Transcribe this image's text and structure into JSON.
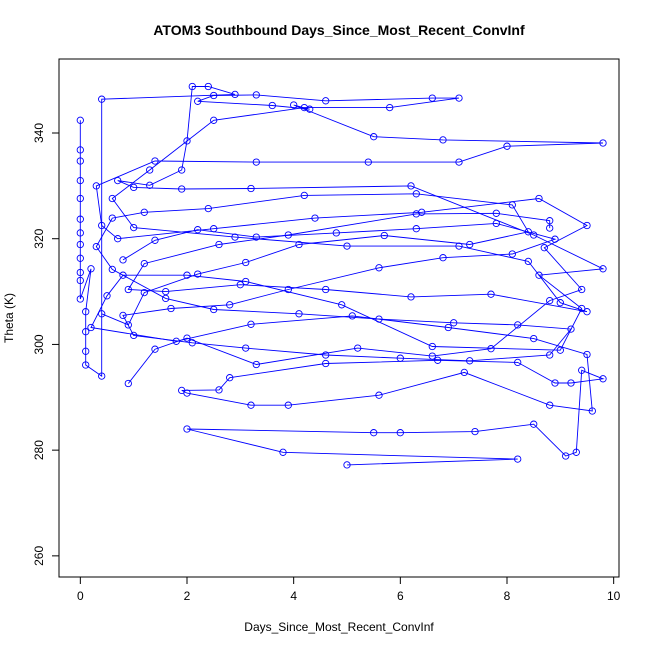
{
  "chart_data": {
    "type": "line",
    "title": "ATOM3 Southbound Days_Since_Most_Recent_ConvInf",
    "xlabel": "Days_Since_Most_Recent_ConvInf",
    "ylabel": "Theta (K)",
    "xlim": [
      -0.4,
      10.1
    ],
    "ylim": [
      256,
      354
    ],
    "xticks": [
      0,
      2,
      4,
      6,
      8,
      10
    ],
    "yticks": [
      260,
      280,
      300,
      320,
      340
    ],
    "series_color": "#0000ff",
    "markers": "open-circle",
    "grid": false,
    "legend": "none",
    "series": [
      {
        "values": [
          [
            0.0,
            342.4
          ],
          [
            0.0,
            336.8
          ],
          [
            0.0,
            334.7
          ],
          [
            0.0,
            331.0
          ],
          [
            0.0,
            327.6
          ],
          [
            0.0,
            323.7
          ],
          [
            0.0,
            321.1
          ],
          [
            0.0,
            318.9
          ],
          [
            0.0,
            316.3
          ],
          [
            0.0,
            313.6
          ],
          [
            0.0,
            312.1
          ],
          [
            0.0,
            308.6
          ],
          [
            0.2,
            314.3
          ],
          [
            0.1,
            306.2
          ],
          [
            0.1,
            302.4
          ],
          [
            0.1,
            298.7
          ],
          [
            0.1,
            296.1
          ],
          [
            0.4,
            294.0
          ],
          [
            0.4,
            346.4
          ],
          [
            2.9,
            347.3
          ],
          [
            2.4,
            348.8
          ],
          [
            2.1,
            348.8
          ],
          [
            2.0,
            338.5
          ],
          [
            1.9,
            333.0
          ],
          [
            1.3,
            330.1
          ],
          [
            0.7,
            331.0
          ],
          [
            1.0,
            329.7
          ],
          [
            1.9,
            329.4
          ],
          [
            3.2,
            329.5
          ],
          [
            6.2,
            330.0
          ],
          [
            8.5,
            320.7
          ],
          [
            9.8,
            314.3
          ],
          [
            8.6,
            313.1
          ],
          [
            9.4,
            306.8
          ],
          [
            9.0,
            298.9
          ],
          [
            6.6,
            299.6
          ],
          [
            4.9,
            307.5
          ],
          [
            3.1,
            311.9
          ],
          [
            2.0,
            313.1
          ],
          [
            0.8,
            313.1
          ],
          [
            0.5,
            309.2
          ],
          [
            0.2,
            303.2
          ],
          [
            1.8,
            300.6
          ],
          [
            3.2,
            303.8
          ],
          [
            5.1,
            305.4
          ],
          [
            6.9,
            303.2
          ],
          [
            8.5,
            301.1
          ],
          [
            9.5,
            298.1
          ],
          [
            9.6,
            287.4
          ],
          [
            8.8,
            288.5
          ],
          [
            7.2,
            294.7
          ],
          [
            5.6,
            290.4
          ],
          [
            3.9,
            288.5
          ],
          [
            3.2,
            288.5
          ],
          [
            2.0,
            290.8
          ],
          [
            1.9,
            291.3
          ],
          [
            2.6,
            291.4
          ],
          [
            2.8,
            293.7
          ],
          [
            4.6,
            296.4
          ],
          [
            6.7,
            297.0
          ],
          [
            8.2,
            296.6
          ],
          [
            8.9,
            292.7
          ],
          [
            9.2,
            292.7
          ],
          [
            9.8,
            293.5
          ],
          [
            9.4,
            295.1
          ],
          [
            9.3,
            279.6
          ],
          [
            9.1,
            278.9
          ],
          [
            8.5,
            284.9
          ],
          [
            7.4,
            283.5
          ],
          [
            6.0,
            283.3
          ],
          [
            5.5,
            283.3
          ],
          [
            2.0,
            284.0
          ],
          [
            3.8,
            279.6
          ],
          [
            8.2,
            278.3
          ],
          [
            5.0,
            277.2
          ]
        ]
      },
      {
        "values": [
          [
            0.9,
            292.6
          ],
          [
            1.4,
            299.1
          ],
          [
            2.0,
            301.2
          ],
          [
            3.3,
            296.2
          ],
          [
            5.2,
            299.3
          ],
          [
            6.6,
            297.8
          ],
          [
            7.7,
            299.2
          ],
          [
            8.8,
            308.3
          ],
          [
            9.4,
            310.4
          ],
          [
            8.7,
            318.3
          ],
          [
            9.5,
            322.5
          ],
          [
            8.6,
            327.6
          ],
          [
            6.4,
            325.0
          ],
          [
            4.4,
            323.9
          ],
          [
            2.5,
            321.9
          ],
          [
            0.7,
            320.0
          ],
          [
            0.4,
            322.5
          ],
          [
            0.3,
            330.0
          ],
          [
            1.4,
            334.7
          ],
          [
            3.3,
            334.5
          ],
          [
            5.4,
            334.5
          ],
          [
            7.1,
            334.5
          ],
          [
            8.0,
            337.5
          ],
          [
            9.8,
            338.1
          ],
          [
            6.8,
            338.7
          ],
          [
            5.5,
            339.3
          ],
          [
            4.0,
            345.3
          ],
          [
            4.3,
            344.5
          ],
          [
            3.6,
            345.2
          ],
          [
            2.2,
            346.0
          ],
          [
            2.5,
            347.1
          ],
          [
            3.3,
            347.2
          ],
          [
            4.6,
            346.1
          ],
          [
            6.6,
            346.6
          ],
          [
            7.1,
            346.6
          ],
          [
            5.8,
            344.8
          ],
          [
            4.2,
            344.8
          ],
          [
            2.5,
            342.4
          ],
          [
            1.3,
            333.0
          ],
          [
            0.6,
            327.6
          ],
          [
            1.0,
            322.1
          ],
          [
            2.9,
            320.3
          ],
          [
            5.0,
            318.6
          ],
          [
            7.1,
            318.6
          ],
          [
            8.4,
            315.7
          ],
          [
            9.0,
            307.9
          ],
          [
            9.5,
            306.2
          ],
          [
            7.7,
            309.5
          ],
          [
            6.2,
            309.0
          ],
          [
            4.6,
            310.4
          ],
          [
            3.0,
            311.3
          ],
          [
            1.6,
            310.0
          ],
          [
            0.9,
            310.4
          ],
          [
            1.2,
            315.3
          ],
          [
            2.6,
            318.9
          ],
          [
            3.9,
            320.7
          ],
          [
            6.3,
            324.7
          ],
          [
            7.8,
            324.8
          ],
          [
            8.8,
            323.4
          ],
          [
            8.8,
            322.0
          ]
        ]
      },
      {
        "values": [
          [
            0.4,
            305.8
          ],
          [
            0.9,
            303.7
          ],
          [
            1.2,
            309.8
          ],
          [
            2.2,
            313.3
          ],
          [
            3.1,
            315.5
          ],
          [
            4.1,
            318.9
          ],
          [
            5.7,
            320.6
          ],
          [
            7.3,
            318.9
          ],
          [
            8.4,
            321.3
          ],
          [
            8.1,
            326.4
          ],
          [
            6.3,
            328.5
          ],
          [
            4.2,
            328.2
          ],
          [
            2.4,
            325.7
          ],
          [
            1.2,
            325.0
          ],
          [
            0.6,
            323.9
          ],
          [
            0.3,
            318.5
          ],
          [
            0.6,
            314.2
          ],
          [
            1.6,
            308.7
          ],
          [
            2.5,
            306.6
          ],
          [
            4.1,
            305.8
          ],
          [
            5.6,
            304.8
          ],
          [
            7.0,
            304.1
          ],
          [
            8.2,
            303.7
          ],
          [
            9.2,
            302.9
          ],
          [
            8.8,
            298.0
          ],
          [
            7.3,
            296.9
          ],
          [
            6.0,
            297.4
          ],
          [
            4.6,
            298.0
          ],
          [
            3.1,
            299.3
          ],
          [
            2.1,
            300.3
          ],
          [
            1.0,
            301.7
          ],
          [
            0.8,
            305.5
          ],
          [
            1.7,
            306.8
          ],
          [
            2.8,
            307.5
          ],
          [
            3.9,
            310.4
          ],
          [
            5.6,
            314.5
          ],
          [
            6.8,
            316.4
          ],
          [
            8.1,
            317.1
          ],
          [
            8.9,
            319.9
          ],
          [
            7.8,
            322.9
          ],
          [
            6.3,
            321.9
          ],
          [
            4.8,
            321.1
          ],
          [
            3.3,
            320.3
          ],
          [
            2.2,
            321.7
          ],
          [
            1.4,
            319.7
          ],
          [
            0.8,
            316.0
          ]
        ]
      }
    ]
  }
}
